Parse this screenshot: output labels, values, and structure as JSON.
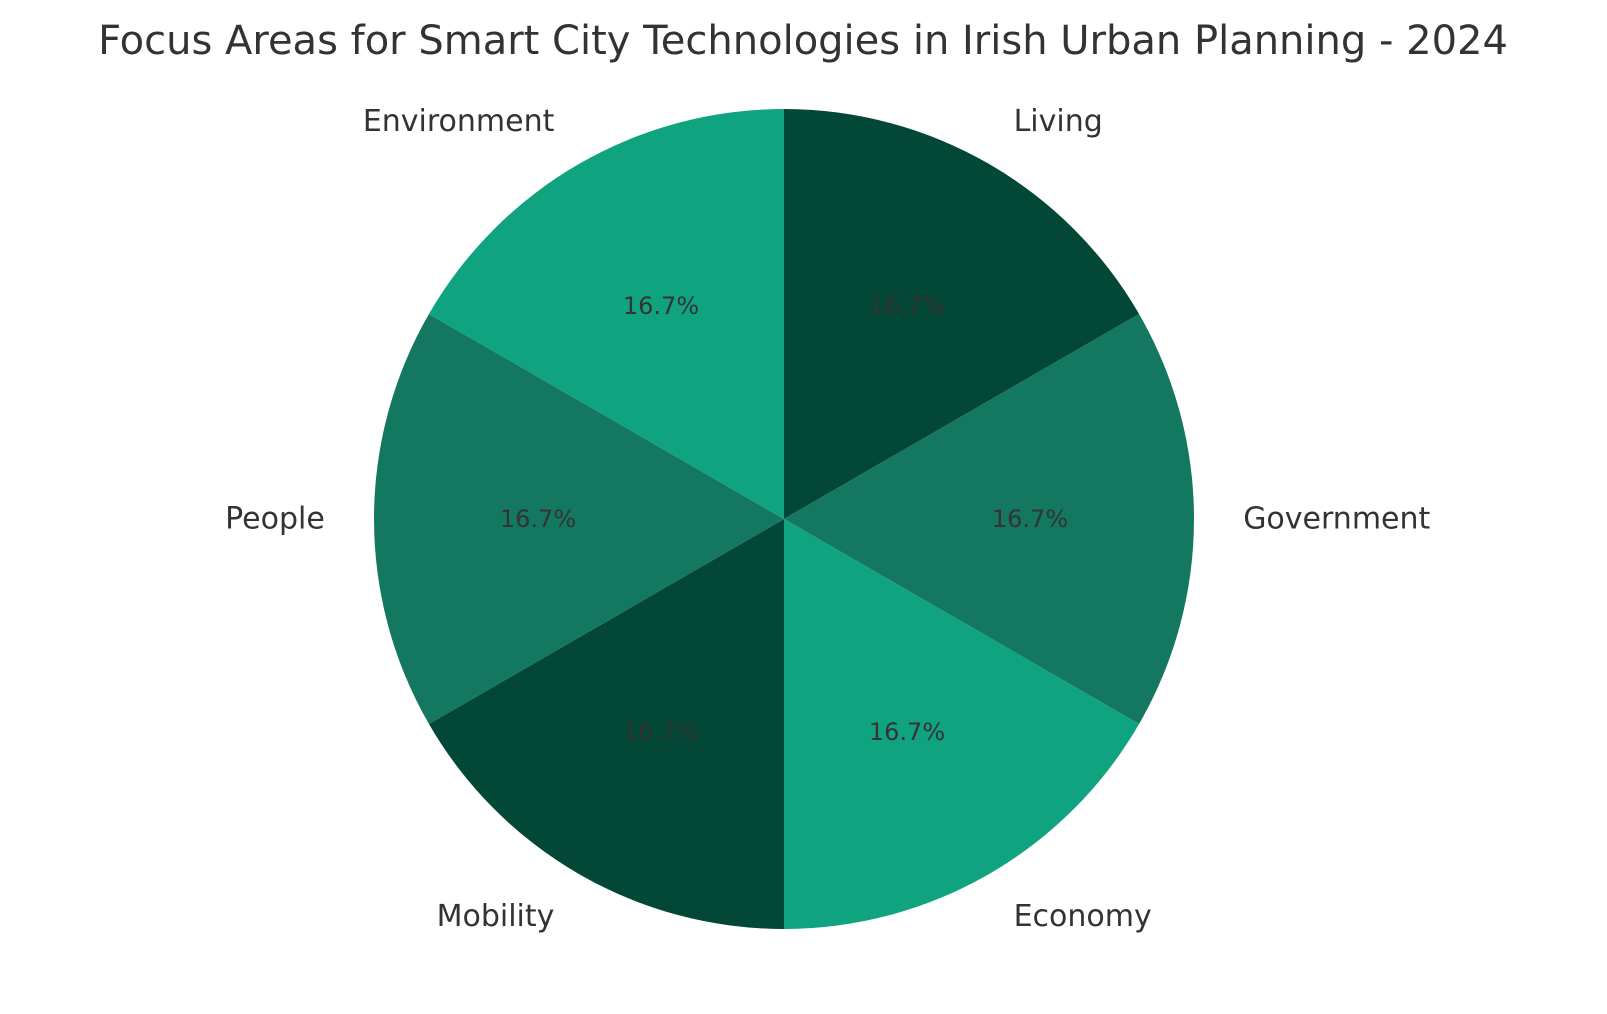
{
  "chart_data": {
    "type": "pie",
    "title": "Focus Areas for Smart City Technologies in Irish Urban Planning - 2024",
    "start": "top",
    "direction": "clockwise",
    "slices": [
      {
        "label": "Living",
        "value": 16.7,
        "pct_label": "16.7%",
        "color": "#034836"
      },
      {
        "label": "Government",
        "value": 16.7,
        "pct_label": "16.7%",
        "color": "#147861"
      },
      {
        "label": "Economy",
        "value": 16.7,
        "pct_label": "16.7%",
        "color": "#10A37F"
      },
      {
        "label": "Mobility",
        "value": 16.7,
        "pct_label": "16.7%",
        "color": "#034836"
      },
      {
        "label": "People",
        "value": 16.7,
        "pct_label": "16.7%",
        "color": "#147861"
      },
      {
        "label": "Environment",
        "value": 16.7,
        "pct_label": "16.7%",
        "color": "#10A37F"
      }
    ],
    "legend": "none",
    "grid": false
  }
}
